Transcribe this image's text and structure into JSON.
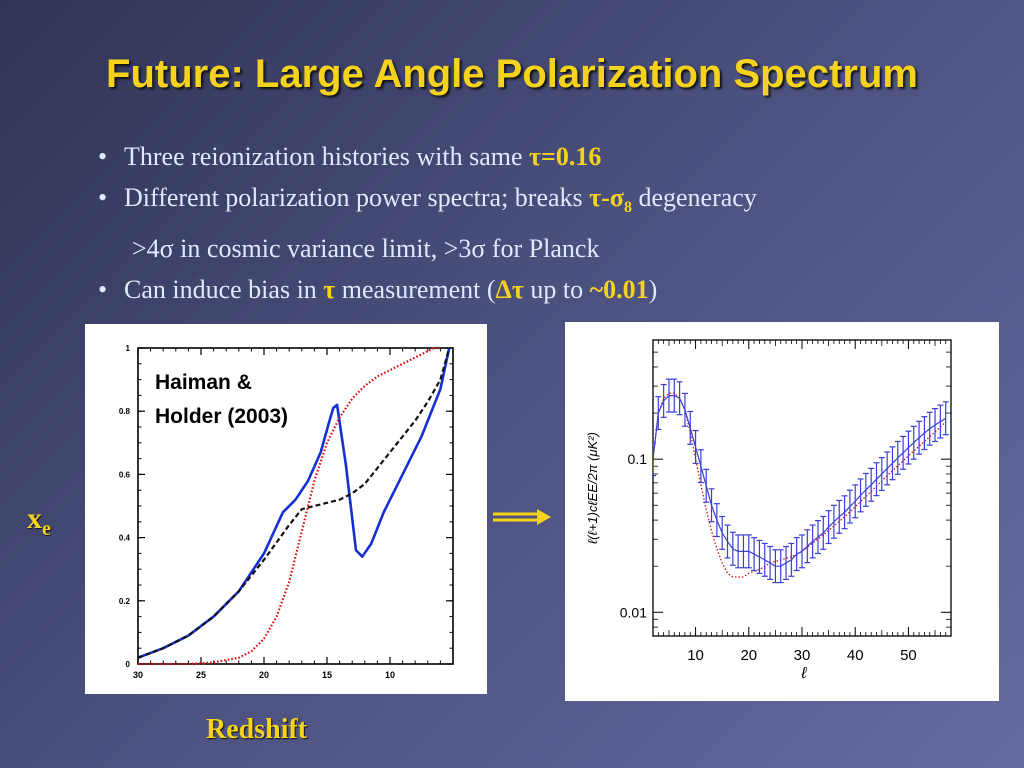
{
  "slide": {
    "title": "Future: Large Angle Polarization Spectrum",
    "bullets": {
      "b1_text": "Three reionization histories with same ",
      "b1_hl": "τ=0.16",
      "b2_text": "Different polarization power spectra; breaks ",
      "b2_hl": "τ-σ",
      "b2_hl_sub": "8",
      "b2_tail": " degeneracy",
      "b2_sub_line": ">4σ in cosmic variance limit,  >3σ for Planck",
      "b3_a": "Can induce bias in ",
      "b3_tau": "τ",
      "b3_b": " measurement (",
      "b3_dtau": "Δτ",
      "b3_c": " up to ",
      "b3_val": "~0.01",
      "b3_d": ")"
    },
    "xe_label": "x",
    "xe_sub": "e",
    "redshift_label": "Redshift",
    "accent_color": "#f5d31c",
    "text_color": "#dfe9ff"
  },
  "chart_data": [
    {
      "type": "line",
      "annotation_line1": "Haiman &",
      "annotation_line2": "Holder (2003)",
      "xlabel": "Redshift",
      "ylabel": "x_e",
      "xlim": [
        30,
        5
      ],
      "ylim": [
        0,
        1
      ],
      "xticks": [
        30,
        25,
        20,
        15,
        10
      ],
      "yticks": [
        0,
        0.2,
        0.4,
        0.6,
        0.8,
        1
      ],
      "ytick_labels": [
        "0",
        "0.2",
        "0.4",
        "0.6",
        "0.8",
        "1"
      ],
      "series": [
        {
          "style": "solid",
          "color": "#1530d0",
          "x": [
            30,
            28,
            26,
            24,
            22,
            20,
            18.5,
            17.5,
            16.5,
            15.5,
            14.8,
            14.5,
            14.2,
            13.5,
            12.7,
            12.2,
            11.5,
            10.5,
            9,
            7.5,
            6.5,
            6,
            5.3
          ],
          "y": [
            0.02,
            0.05,
            0.09,
            0.15,
            0.23,
            0.35,
            0.48,
            0.52,
            0.58,
            0.67,
            0.77,
            0.81,
            0.82,
            0.63,
            0.36,
            0.34,
            0.38,
            0.48,
            0.6,
            0.72,
            0.82,
            0.87,
            1.0
          ]
        },
        {
          "style": "dashed",
          "color": "#111111",
          "x": [
            30,
            28,
            26,
            24,
            22,
            20,
            18,
            17,
            16,
            15,
            14,
            13,
            12,
            11,
            10,
            9,
            8,
            7,
            6,
            5.3
          ],
          "y": [
            0.02,
            0.05,
            0.09,
            0.15,
            0.23,
            0.33,
            0.44,
            0.49,
            0.5,
            0.51,
            0.52,
            0.54,
            0.57,
            0.62,
            0.67,
            0.72,
            0.77,
            0.83,
            0.9,
            1.0
          ]
        },
        {
          "style": "dotted",
          "color": "#e01010",
          "x": [
            30,
            26,
            24,
            22,
            21,
            20,
            19,
            18,
            17,
            16,
            15,
            14,
            13,
            12,
            11,
            10,
            9,
            8,
            7,
            6.5,
            6
          ],
          "y": [
            0,
            0,
            0.005,
            0.02,
            0.04,
            0.08,
            0.15,
            0.26,
            0.42,
            0.58,
            0.7,
            0.78,
            0.84,
            0.88,
            0.91,
            0.93,
            0.95,
            0.97,
            0.99,
            1.0,
            1.0
          ]
        }
      ]
    },
    {
      "type": "line",
      "xlabel": "ℓ",
      "ylabel": "ℓ(ℓ+1)cℓEE/2π  (μK²)",
      "xlim": [
        2,
        58
      ],
      "ylim": [
        0.007,
        0.6
      ],
      "yscale": "log",
      "xticks": [
        10,
        20,
        30,
        40,
        50
      ],
      "yticks": [
        0.01,
        0.1
      ],
      "ytick_labels": [
        "0.01",
        "0.1"
      ],
      "series": [
        {
          "style": "errorbars",
          "color": "#3a40d8",
          "x": [
            2,
            3,
            4,
            5,
            6,
            7,
            8,
            9,
            10,
            11,
            12,
            13,
            14,
            15,
            16,
            17,
            18,
            19,
            20,
            21,
            22,
            23,
            24,
            25,
            26,
            27,
            28,
            29,
            30,
            31,
            32,
            33,
            34,
            35,
            36,
            37,
            38,
            39,
            40,
            41,
            42,
            43,
            44,
            45,
            46,
            47,
            48,
            49,
            50,
            51,
            52,
            53,
            54,
            55,
            56,
            57
          ],
          "y": [
            0.1,
            0.2,
            0.24,
            0.26,
            0.26,
            0.25,
            0.21,
            0.16,
            0.12,
            0.09,
            0.067,
            0.05,
            0.04,
            0.033,
            0.029,
            0.026,
            0.025,
            0.025,
            0.025,
            0.024,
            0.023,
            0.022,
            0.021,
            0.02,
            0.02,
            0.021,
            0.022,
            0.024,
            0.025,
            0.027,
            0.029,
            0.031,
            0.033,
            0.036,
            0.039,
            0.042,
            0.045,
            0.049,
            0.053,
            0.058,
            0.063,
            0.068,
            0.074,
            0.08,
            0.087,
            0.094,
            0.102,
            0.11,
            0.119,
            0.128,
            0.138,
            0.148,
            0.158,
            0.167,
            0.176,
            0.185
          ]
        },
        {
          "style": "dotted",
          "color": "#e01010",
          "x": [
            2,
            3,
            4,
            5,
            6,
            7,
            8,
            9,
            10,
            11,
            12,
            13,
            14,
            15,
            16,
            17,
            18,
            19,
            20,
            22,
            24,
            26,
            28,
            30,
            34,
            38,
            42,
            46,
            50,
            54,
            57
          ],
          "y": [
            0.1,
            0.2,
            0.25,
            0.27,
            0.27,
            0.25,
            0.21,
            0.15,
            0.1,
            0.068,
            0.047,
            0.034,
            0.026,
            0.021,
            0.018,
            0.017,
            0.017,
            0.017,
            0.018,
            0.019,
            0.021,
            0.022,
            0.023,
            0.025,
            0.032,
            0.042,
            0.057,
            0.078,
            0.105,
            0.14,
            0.175
          ]
        }
      ]
    }
  ]
}
